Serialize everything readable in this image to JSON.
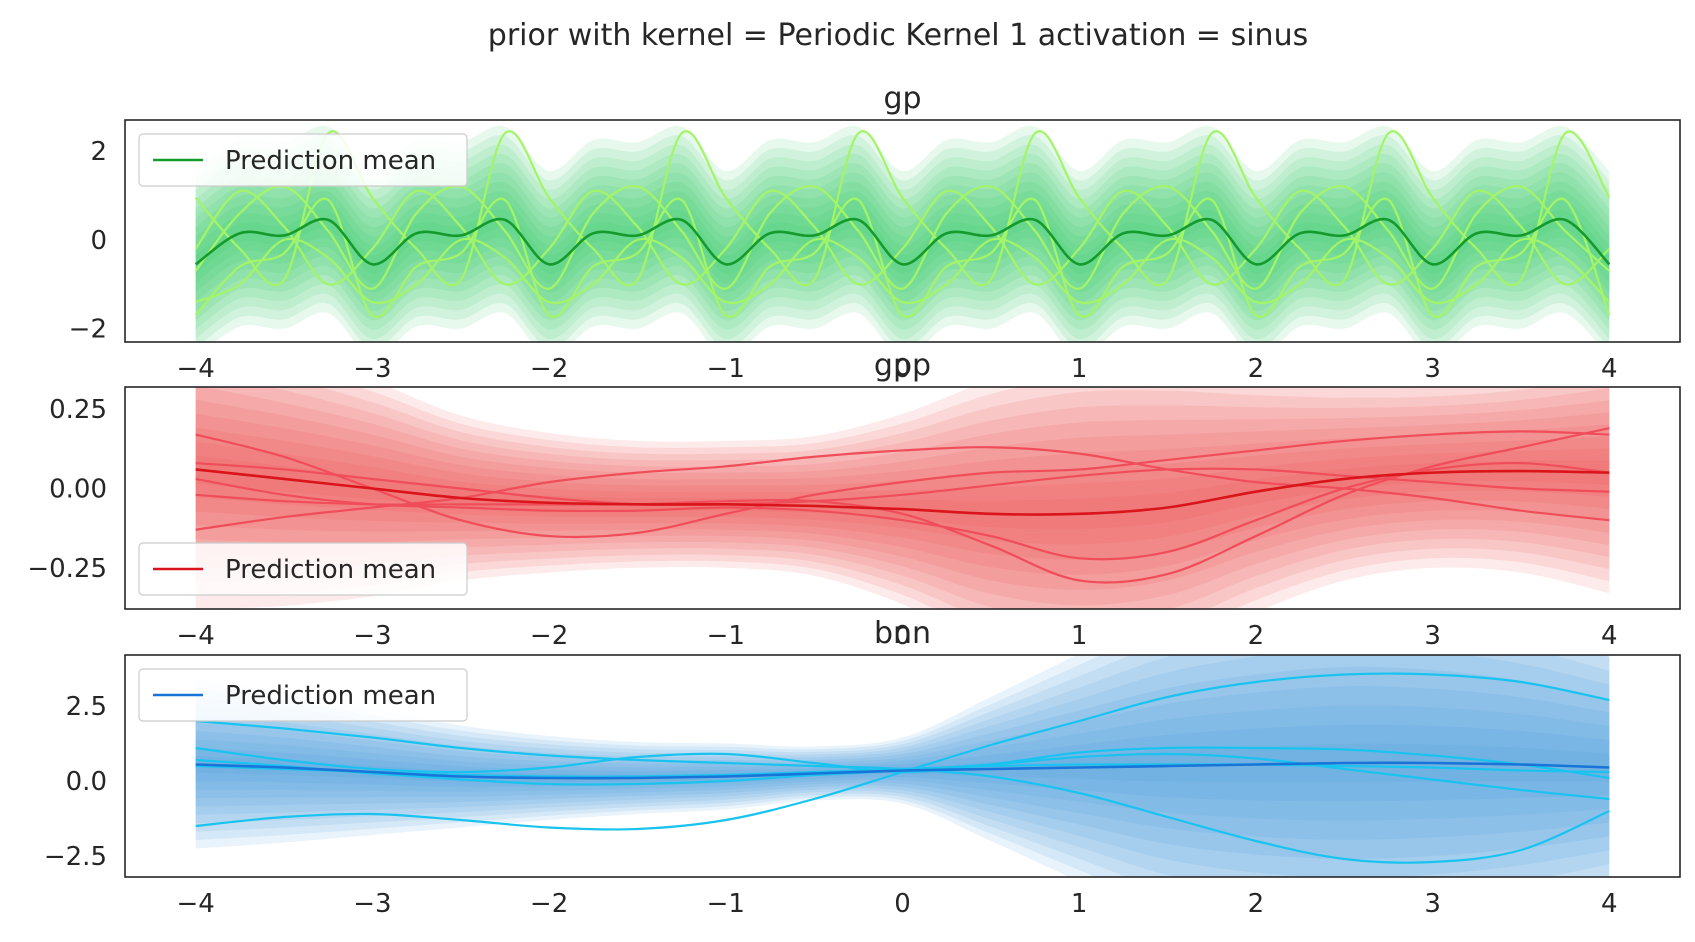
{
  "figure": {
    "suptitle": "prior with kernel = Periodic Kernel 1 activation = sinus"
  },
  "chart_data": [
    {
      "type": "line",
      "title": "gp",
      "xlim": [
        -4.4,
        4.4
      ],
      "ylim": [
        -2.3,
        2.7
      ],
      "xticks": [
        -4,
        -3,
        -2,
        -1,
        0,
        1,
        2,
        3,
        4
      ],
      "xtick_labels": [
        "−4",
        "−3",
        "−2",
        "−1",
        "0",
        "1",
        "2",
        "3",
        "4"
      ],
      "yticks": [
        -2,
        0,
        2
      ],
      "ytick_labels": [
        "−2",
        "0",
        "2"
      ],
      "grid": false,
      "legend": {
        "placement": "upper-left",
        "entries": [
          "Prediction mean"
        ]
      },
      "colors": {
        "mean": "#159a2e",
        "band": "#22c55e",
        "samples": "#a3f567"
      },
      "x": [
        -4.0,
        -3.75,
        -3.5,
        -3.25,
        -3.0,
        -2.75,
        -2.5,
        -2.25,
        -2.0,
        -1.75,
        -1.5,
        -1.25,
        -1.0,
        -0.75,
        -0.5,
        -0.25,
        0.0,
        0.25,
        0.5,
        0.75,
        1.0,
        1.25,
        1.5,
        1.75,
        2.0,
        2.25,
        2.5,
        2.75,
        3.0,
        3.25,
        3.5,
        3.75,
        4.0
      ],
      "mean": [
        -0.55,
        0.15,
        0.1,
        0.45,
        -0.55,
        0.15,
        0.1,
        0.45,
        -0.55,
        0.15,
        0.1,
        0.45,
        -0.55,
        0.15,
        0.1,
        0.45,
        -0.55,
        0.15,
        0.1,
        0.45,
        -0.55,
        0.15,
        0.1,
        0.45,
        -0.55,
        0.15,
        0.1,
        0.45,
        -0.55,
        0.15,
        0.1,
        0.45,
        -0.55
      ],
      "std": 1.05,
      "samples": [
        [
          -0.7,
          0.6,
          1.2,
          0.2,
          -1.1,
          0.6,
          1.2,
          0.2,
          -1.1,
          0.6,
          1.2,
          0.2,
          -1.1,
          0.6,
          1.2,
          0.2,
          -1.1,
          0.6,
          1.2,
          0.2,
          -1.1,
          0.6,
          1.2,
          0.2,
          -1.1,
          0.6,
          1.2,
          0.2,
          -1.1,
          0.6,
          1.2,
          0.2,
          -0.7
        ],
        [
          0.95,
          -0.2,
          -0.9,
          2.4,
          0.95,
          -0.2,
          -0.9,
          2.4,
          0.95,
          -0.2,
          -0.9,
          2.4,
          0.95,
          -0.2,
          -0.9,
          2.4,
          0.95,
          -0.2,
          -0.9,
          2.4,
          0.95,
          -0.2,
          -0.9,
          2.4,
          0.95,
          -0.2,
          -0.9,
          2.4,
          0.95,
          -0.2,
          -0.9,
          2.4,
          0.95
        ],
        [
          -1.7,
          -0.6,
          -0.3,
          0.9,
          -1.7,
          -0.6,
          -0.3,
          0.9,
          -1.7,
          -0.6,
          -0.3,
          0.9,
          -1.7,
          -0.6,
          -0.3,
          0.9,
          -1.7,
          -0.6,
          -0.3,
          0.9,
          -1.7,
          -0.6,
          -0.3,
          0.9,
          -1.7,
          -0.6,
          -0.3,
          0.9,
          -1.7,
          -0.6,
          -0.3,
          0.9,
          -1.7
        ],
        [
          -0.2,
          1.1,
          0.3,
          -1.0,
          -0.2,
          1.1,
          0.3,
          -1.0,
          -0.2,
          1.1,
          0.3,
          -1.0,
          -0.2,
          1.1,
          0.3,
          -1.0,
          -0.2,
          1.1,
          0.3,
          -1.0,
          -0.2,
          1.1,
          0.3,
          -1.0,
          -0.2,
          1.1,
          0.3,
          -1.0,
          -0.2,
          1.1,
          0.3,
          -1.0,
          -0.2
        ],
        [
          -1.4,
          -1.0,
          0.0,
          -0.4,
          -1.4,
          -1.0,
          0.0,
          -0.4,
          -1.4,
          -1.0,
          0.0,
          -0.4,
          -1.4,
          -1.0,
          0.0,
          -0.4,
          -1.4,
          -1.0,
          0.0,
          -0.4,
          -1.4,
          -1.0,
          0.0,
          -0.4,
          -1.4,
          -1.0,
          0.0,
          -0.4,
          -1.4,
          -1.0,
          0.0,
          -0.4,
          -1.4
        ]
      ]
    },
    {
      "type": "line",
      "title": "gpp",
      "xlim": [
        -4.4,
        4.4
      ],
      "ylim": [
        -0.38,
        0.32
      ],
      "xticks": [
        -4,
        -3,
        -2,
        -1,
        0,
        1,
        2,
        3,
        4
      ],
      "xtick_labels": [
        "−4",
        "−3",
        "−2",
        "−1",
        "0",
        "1",
        "2",
        "3",
        "4"
      ],
      "yticks": [
        -0.25,
        0.0,
        0.25
      ],
      "ytick_labels": [
        "−0.25",
        "0.00",
        "0.25"
      ],
      "grid": false,
      "legend": {
        "placement": "lower-left",
        "entries": [
          "Prediction mean"
        ]
      },
      "colors": {
        "mean": "#d9141b",
        "band": "#ef4444",
        "samples": "#f04d5a"
      },
      "x": [
        -4.0,
        -3.5,
        -3.0,
        -2.5,
        -2.0,
        -1.5,
        -1.0,
        -0.5,
        0.0,
        0.5,
        1.0,
        1.5,
        2.0,
        2.5,
        3.0,
        3.5,
        4.0
      ],
      "mean": [
        0.06,
        0.03,
        0.0,
        -0.03,
        -0.045,
        -0.05,
        -0.05,
        -0.055,
        -0.065,
        -0.08,
        -0.08,
        -0.06,
        -0.01,
        0.03,
        0.05,
        0.055,
        0.05
      ],
      "std": [
        0.22,
        0.2,
        0.17,
        0.13,
        0.11,
        0.1,
        0.1,
        0.11,
        0.15,
        0.21,
        0.24,
        0.23,
        0.19,
        0.16,
        0.15,
        0.16,
        0.19
      ],
      "samples": [
        [
          0.17,
          0.1,
          0.0,
          -0.1,
          -0.15,
          -0.14,
          -0.08,
          -0.02,
          0.02,
          0.05,
          0.06,
          0.09,
          0.12,
          0.15,
          0.17,
          0.18,
          0.17
        ],
        [
          -0.13,
          -0.09,
          -0.06,
          -0.03,
          0.02,
          0.05,
          0.07,
          0.1,
          0.12,
          0.13,
          0.11,
          0.06,
          0.02,
          0.0,
          -0.03,
          -0.07,
          -0.1
        ],
        [
          0.03,
          -0.02,
          -0.05,
          -0.06,
          -0.07,
          -0.07,
          -0.06,
          -0.07,
          -0.1,
          -0.15,
          -0.22,
          -0.2,
          -0.1,
          0.0,
          0.06,
          0.08,
          0.05
        ],
        [
          -0.02,
          -0.04,
          -0.05,
          -0.05,
          -0.05,
          -0.05,
          -0.04,
          -0.04,
          -0.08,
          -0.18,
          -0.29,
          -0.27,
          -0.15,
          -0.02,
          0.07,
          0.13,
          0.19
        ],
        [
          0.08,
          0.06,
          0.03,
          0.0,
          -0.03,
          -0.05,
          -0.05,
          -0.04,
          -0.02,
          0.01,
          0.04,
          0.06,
          0.06,
          0.04,
          0.02,
          0.0,
          -0.01
        ]
      ]
    },
    {
      "type": "line",
      "title": "bnn",
      "xlim": [
        -4.4,
        4.4
      ],
      "ylim": [
        -3.2,
        4.2
      ],
      "xticks": [
        -4,
        -3,
        -2,
        -1,
        0,
        1,
        2,
        3,
        4
      ],
      "xtick_labels": [
        "−4",
        "−3",
        "−2",
        "−1",
        "0",
        "1",
        "2",
        "3",
        "4"
      ],
      "yticks": [
        -2.5,
        0.0,
        2.5
      ],
      "ytick_labels": [
        "−2.5",
        "0.0",
        "2.5"
      ],
      "grid": false,
      "legend": {
        "placement": "upper-left",
        "entries": [
          "Prediction mean"
        ]
      },
      "colors": {
        "mean": "#1874d8",
        "band": "#3b8fdd",
        "samples": "#19c3ef"
      },
      "x": [
        -4.0,
        -3.5,
        -3.0,
        -2.5,
        -2.0,
        -1.5,
        -1.0,
        -0.5,
        0.0,
        0.5,
        1.0,
        1.5,
        2.0,
        2.5,
        3.0,
        3.5,
        4.0
      ],
      "mean": [
        0.55,
        0.45,
        0.3,
        0.15,
        0.1,
        0.1,
        0.15,
        0.25,
        0.35,
        0.4,
        0.45,
        0.5,
        0.55,
        0.6,
        0.6,
        0.55,
        0.45
      ],
      "std": [
        1.4,
        1.25,
        1.05,
        0.85,
        0.7,
        0.6,
        0.55,
        0.45,
        0.55,
        1.2,
        1.9,
        2.6,
        3.0,
        3.2,
        3.1,
        2.8,
        2.3
      ],
      "samples": [
        [
          2.0,
          1.75,
          1.45,
          1.1,
          0.85,
          0.7,
          0.6,
          0.5,
          0.4,
          0.15,
          -0.4,
          -1.2,
          -2.0,
          -2.6,
          -2.7,
          -2.3,
          -1.0
        ],
        [
          -1.5,
          -1.2,
          -1.1,
          -1.3,
          -1.55,
          -1.6,
          -1.3,
          -0.6,
          0.3,
          1.2,
          2.0,
          2.8,
          3.3,
          3.55,
          3.55,
          3.3,
          2.7
        ],
        [
          1.1,
          0.7,
          0.4,
          0.3,
          0.45,
          0.8,
          0.9,
          0.6,
          0.3,
          0.55,
          0.95,
          1.1,
          1.1,
          1.05,
          0.85,
          0.55,
          0.1
        ],
        [
          0.7,
          0.5,
          0.25,
          0.05,
          -0.1,
          -0.1,
          0.0,
          0.2,
          0.35,
          0.55,
          0.8,
          0.9,
          0.75,
          0.4,
          0.05,
          -0.3,
          -0.6
        ],
        [
          0.5,
          0.4,
          0.3,
          0.2,
          0.15,
          0.15,
          0.2,
          0.3,
          0.4,
          0.5,
          0.55,
          0.55,
          0.55,
          0.5,
          0.45,
          0.35,
          0.3
        ]
      ]
    }
  ]
}
